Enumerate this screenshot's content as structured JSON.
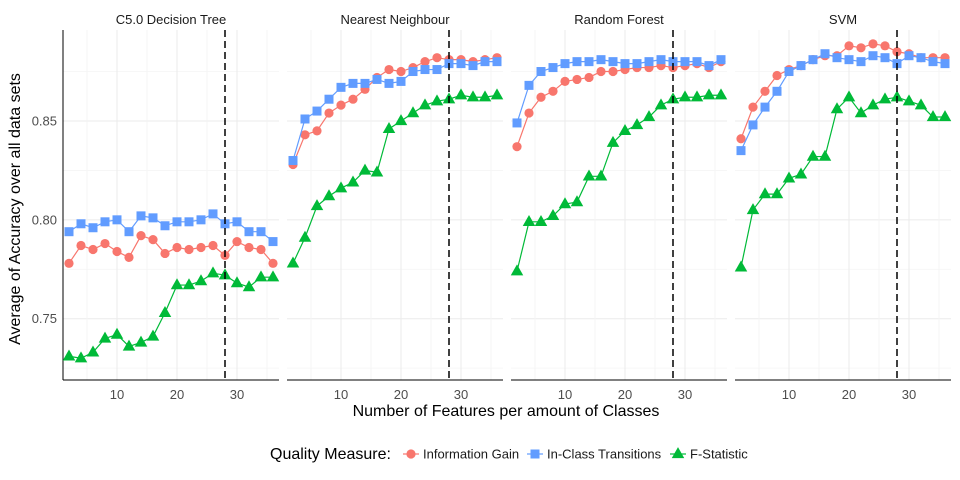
{
  "chart_data": {
    "type": "line",
    "title": "",
    "xlabel": "Number of Features per amount of Classes",
    "ylabel": "Average of Accuracy over all data sets",
    "xlim": [
      1,
      37
    ],
    "ylim": [
      0.719,
      0.896
    ],
    "xticks": [
      10,
      20,
      30
    ],
    "xtick_labels": [
      "10",
      "20",
      "30"
    ],
    "yticks": [
      0.75,
      0.8,
      0.85
    ],
    "ytick_labels": [
      "0.75",
      "0.80",
      "0.85"
    ],
    "vline_x": 28,
    "grid": true,
    "legend_title": "Quality Measure:",
    "legend_position": "bottom",
    "x": [
      2,
      4,
      6,
      8,
      10,
      12,
      14,
      16,
      18,
      20,
      22,
      24,
      26,
      28,
      30,
      32,
      34,
      36
    ],
    "series_styles": [
      {
        "name": "Information Gain",
        "color": "#F8766D",
        "marker": "circle"
      },
      {
        "name": "In-Class Transitions",
        "color": "#619CFF",
        "marker": "square"
      },
      {
        "name": "F-Statistic",
        "color": "#00BA38",
        "marker": "triangle"
      }
    ],
    "panels": [
      {
        "title": "C5.0 Decision Tree",
        "series": [
          {
            "name": "Information Gain",
            "values": [
              0.778,
              0.787,
              0.785,
              0.788,
              0.784,
              0.781,
              0.792,
              0.79,
              0.783,
              0.786,
              0.785,
              0.786,
              0.787,
              0.782,
              0.789,
              0.786,
              0.785,
              0.778
            ]
          },
          {
            "name": "In-Class Transitions",
            "values": [
              0.794,
              0.798,
              0.796,
              0.799,
              0.8,
              0.794,
              0.802,
              0.801,
              0.797,
              0.799,
              0.799,
              0.8,
              0.803,
              0.798,
              0.799,
              0.794,
              0.794,
              0.789
            ]
          },
          {
            "name": "F-Statistic",
            "values": [
              0.731,
              0.73,
              0.733,
              0.74,
              0.742,
              0.736,
              0.738,
              0.741,
              0.753,
              0.767,
              0.767,
              0.769,
              0.773,
              0.772,
              0.768,
              0.766,
              0.771,
              0.771
            ]
          }
        ]
      },
      {
        "title": "Nearest Neighbour",
        "series": [
          {
            "name": "Information Gain",
            "values": [
              0.828,
              0.843,
              0.845,
              0.854,
              0.858,
              0.861,
              0.866,
              0.872,
              0.876,
              0.875,
              0.877,
              0.88,
              0.882,
              0.881,
              0.881,
              0.88,
              0.881,
              0.882
            ]
          },
          {
            "name": "In-Class Transitions",
            "values": [
              0.83,
              0.851,
              0.855,
              0.861,
              0.867,
              0.869,
              0.869,
              0.871,
              0.869,
              0.87,
              0.875,
              0.876,
              0.876,
              0.879,
              0.879,
              0.878,
              0.88,
              0.88
            ]
          },
          {
            "name": "F-Statistic",
            "values": [
              0.778,
              0.791,
              0.807,
              0.812,
              0.816,
              0.819,
              0.825,
              0.824,
              0.846,
              0.85,
              0.854,
              0.858,
              0.86,
              0.861,
              0.863,
              0.862,
              0.862,
              0.863
            ]
          }
        ]
      },
      {
        "title": "Random Forest",
        "series": [
          {
            "name": "Information Gain",
            "values": [
              0.837,
              0.854,
              0.862,
              0.865,
              0.87,
              0.871,
              0.872,
              0.875,
              0.875,
              0.876,
              0.877,
              0.877,
              0.878,
              0.877,
              0.878,
              0.879,
              0.877,
              0.88
            ]
          },
          {
            "name": "In-Class Transitions",
            "values": [
              0.849,
              0.868,
              0.875,
              0.877,
              0.879,
              0.88,
              0.88,
              0.881,
              0.88,
              0.879,
              0.879,
              0.88,
              0.881,
              0.88,
              0.88,
              0.88,
              0.878,
              0.881
            ]
          },
          {
            "name": "F-Statistic",
            "values": [
              0.774,
              0.799,
              0.799,
              0.802,
              0.808,
              0.809,
              0.822,
              0.822,
              0.839,
              0.845,
              0.848,
              0.852,
              0.858,
              0.861,
              0.862,
              0.862,
              0.863,
              0.863
            ]
          }
        ]
      },
      {
        "title": "SVM",
        "series": [
          {
            "name": "Information Gain",
            "values": [
              0.841,
              0.857,
              0.865,
              0.873,
              0.876,
              0.878,
              0.881,
              0.883,
              0.883,
              0.888,
              0.887,
              0.889,
              0.888,
              0.885,
              0.884,
              0.882,
              0.882,
              0.882
            ]
          },
          {
            "name": "In-Class Transitions",
            "values": [
              0.835,
              0.848,
              0.857,
              0.865,
              0.875,
              0.878,
              0.881,
              0.884,
              0.882,
              0.881,
              0.88,
              0.883,
              0.882,
              0.879,
              0.883,
              0.882,
              0.88,
              0.879
            ]
          },
          {
            "name": "F-Statistic",
            "values": [
              0.776,
              0.805,
              0.813,
              0.813,
              0.821,
              0.823,
              0.832,
              0.832,
              0.856,
              0.862,
              0.854,
              0.858,
              0.861,
              0.862,
              0.86,
              0.858,
              0.852,
              0.852
            ]
          }
        ]
      }
    ]
  }
}
